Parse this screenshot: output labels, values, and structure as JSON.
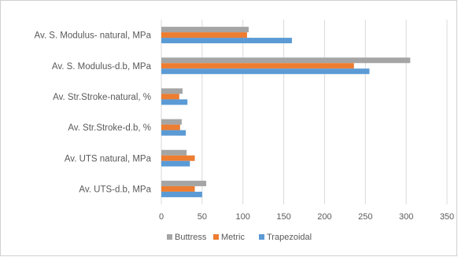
{
  "chart_data": {
    "type": "bar",
    "orientation": "horizontal",
    "categories": [
      "Av. S. Modulus- natural, MPa",
      "Av. S. Modulus-d.b, MPa",
      "Av. Str.Stroke-natural, %",
      "Av. Str.Stroke-d.b, %",
      "Av. UTS natural, MPa",
      "Av. UTS-d.b, MPa"
    ],
    "series": [
      {
        "name": "Buttress",
        "color": "#a5a5a5",
        "values": [
          107,
          305,
          26,
          25,
          31,
          55
        ]
      },
      {
        "name": "Metric",
        "color": "#ed7d31",
        "values": [
          105,
          236,
          22,
          23,
          41,
          41
        ]
      },
      {
        "name": "Trapezoidal",
        "color": "#5b9bd5",
        "values": [
          160,
          255,
          32,
          30,
          35,
          50
        ]
      }
    ],
    "xlim": [
      0,
      350
    ],
    "xticks": [
      "0",
      "50",
      "100",
      "150",
      "200",
      "250",
      "300",
      "350"
    ],
    "grid": "vertical",
    "legend_position": "bottom",
    "legend_order": [
      "Buttress",
      "Metric",
      "Trapezoidal"
    ]
  }
}
